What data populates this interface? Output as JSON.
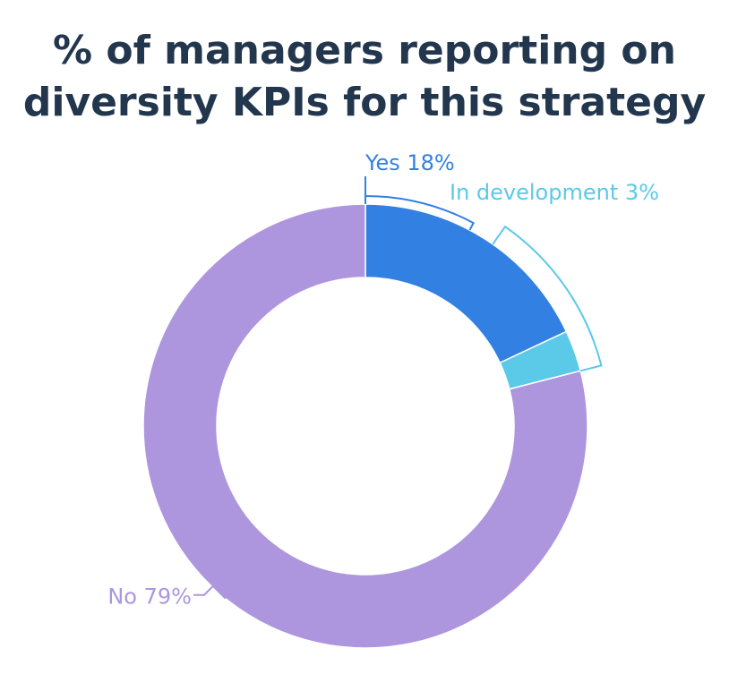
{
  "chart_data": {
    "type": "pie",
    "variant": "donut",
    "title_lines": [
      "% of managers reporting on",
      "diversity KPIs for this strategy"
    ],
    "slices": [
      {
        "label": "Yes 18%",
        "category": "Yes",
        "value": 18,
        "color": "#3180e2"
      },
      {
        "label": "In development 3%",
        "category": "In development",
        "value": 3,
        "color": "#5bc9e8"
      },
      {
        "label": "No 79%",
        "category": "No",
        "value": 79,
        "color": "#ad96dd"
      }
    ],
    "legend": "none",
    "labels": "outside with leader lines"
  },
  "colors": {
    "title": "#22364d",
    "background": "#ffffff"
  }
}
